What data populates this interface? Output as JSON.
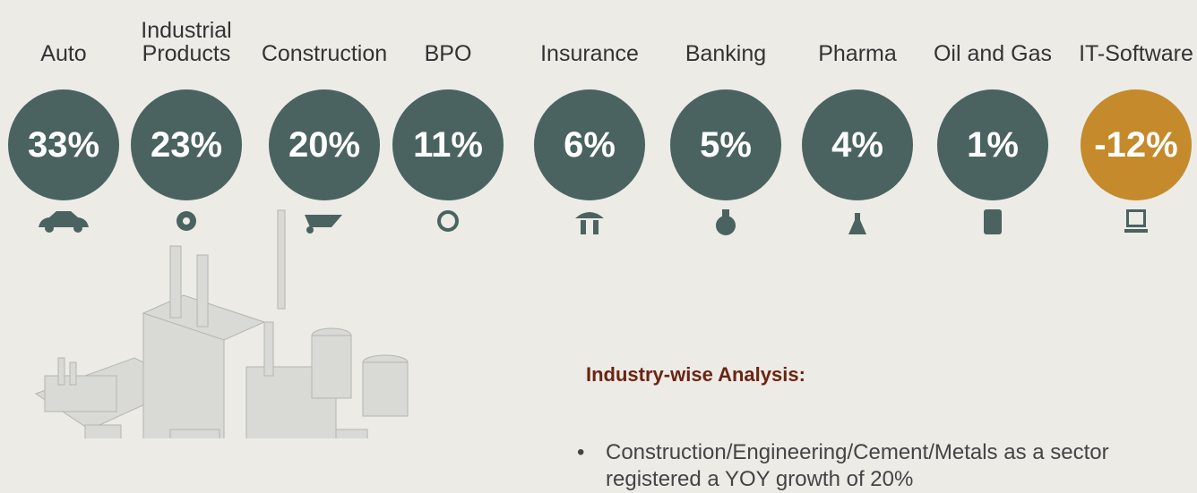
{
  "industries": [
    {
      "name": "Auto",
      "growth": "33%"
    },
    {
      "name": "Industrial Products",
      "growth": "23%"
    },
    {
      "name": "Construction",
      "growth": "20%"
    },
    {
      "name": "BPO",
      "growth": "11%"
    },
    {
      "name": "Insurance",
      "growth": "6%"
    },
    {
      "name": "Banking",
      "growth": "5%"
    },
    {
      "name": "Pharma",
      "growth": "4%"
    },
    {
      "name": "Oil and Gas",
      "growth": "1%"
    },
    {
      "name": "IT-Software",
      "growth": "-12%"
    }
  ],
  "analysis": {
    "heading": "Industry-wise Analysis:",
    "bullets": [
      "Construction/Engineering/Cement/Metals as a sector registered a YOY growth of 20%"
    ]
  }
}
